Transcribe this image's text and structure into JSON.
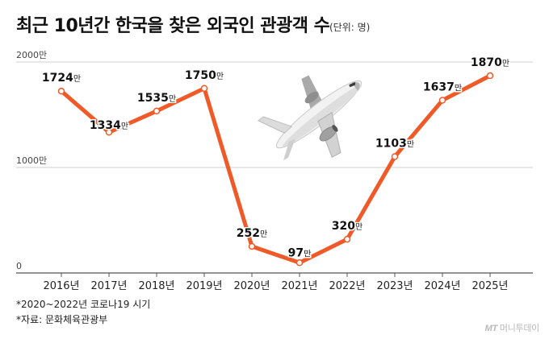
{
  "title": "최근 10년간 한국을 찾은 외국인 관광객 수",
  "unit_label": "(단위: 명)",
  "chart_data": {
    "type": "line",
    "title": "최근 10년간 한국을 찾은 외국인 관광객 수",
    "xlabel": "",
    "ylabel": "",
    "categories": [
      "2016년",
      "2017년",
      "2018년",
      "2019년",
      "2020년",
      "2021년",
      "2022년",
      "2023년",
      "2024년",
      "2025년"
    ],
    "values": [
      1724,
      1334,
      1535,
      1750,
      252,
      97,
      320,
      1103,
      1637,
      1870
    ],
    "value_labels": [
      "1724",
      "1334",
      "1535",
      "1750",
      "252",
      "97",
      "320",
      "1103",
      "1637",
      "1870"
    ],
    "value_suffix": "만",
    "ylim": [
      0,
      2000
    ],
    "yticks": [
      {
        "value": 0,
        "label": "0"
      },
      {
        "value": 1000,
        "label": "1000만"
      },
      {
        "value": 2000,
        "label": "2000만"
      }
    ],
    "grid": true,
    "legend": "none",
    "line_color": "#f05a28",
    "decoration": "airplane-illustration"
  },
  "footnotes": [
    "*2020~2022년 코로나19 시기",
    "*자료: 문화체육관광부"
  ],
  "credit": {
    "logo": "MT",
    "text": "머니투데이"
  }
}
